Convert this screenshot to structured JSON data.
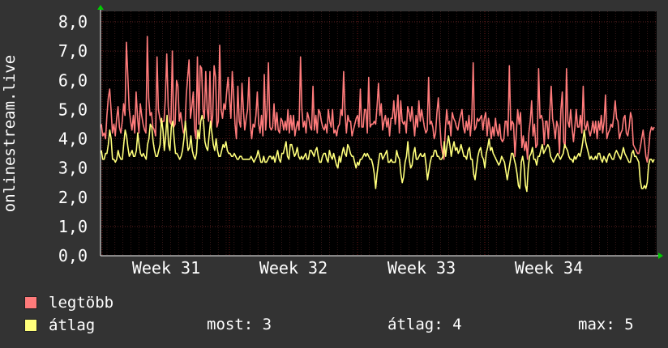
{
  "colors": {
    "background": "#333333",
    "plot_background": "#000000",
    "grid": "#5a2a2a",
    "axis_text": "#ffffff",
    "series_max": "#ff7b7b",
    "series_avg": "#ffff7b",
    "arrow": "#00cc00"
  },
  "chart_data": {
    "type": "line",
    "ylabel": "onlinestream.live",
    "ylim": [
      0,
      8
    ],
    "yticks": [
      "0,0",
      "1,0",
      "2,0",
      "3,0",
      "4,0",
      "5,0",
      "6,0",
      "7,0",
      "8,0"
    ],
    "xticks": [
      "Week 31",
      "Week 32",
      "Week 33",
      "Week 34"
    ],
    "grid": true,
    "series": [
      {
        "name": "legtöbb",
        "color": "#ff7b7b",
        "values": [
          4.5,
          4.1,
          4.2,
          4.0,
          4.8,
          5.4,
          5.7,
          5.0,
          4.2,
          4.5,
          4.1,
          4.7,
          5.1,
          4.4,
          4.2,
          4.6,
          5.2,
          4.8,
          7.3,
          6.2,
          5.0,
          4.6,
          4.3,
          4.8,
          4.2,
          5.6,
          4.7,
          4.2,
          5.2,
          4.8,
          4.5,
          4.3,
          4.2,
          7.5,
          5.4,
          4.8,
          4.9,
          4.4,
          4.3,
          4.1,
          6.8,
          5.0,
          4.7,
          4.5,
          4.6,
          4.6,
          5.4,
          6.9,
          5.1,
          4.6,
          4.5,
          7.0,
          4.4,
          4.5,
          6.0,
          5.8,
          4.6,
          4.9,
          4.5,
          4.2,
          4.3,
          5.5,
          6.1,
          6.7,
          4.7,
          5.1,
          5.6,
          4.3,
          4.0,
          6.8,
          4.5,
          6.5,
          6.4,
          5.0,
          4.7,
          6.3,
          5.0,
          4.6,
          6.3,
          4.4,
          4.8,
          6.5,
          6.1,
          4.4,
          4.6,
          7.2,
          5.0,
          4.7,
          5.2,
          5.0,
          5.6,
          6.1,
          5.4,
          4.7,
          6.3,
          5.5,
          4.5,
          4.0,
          5.8,
          4.6,
          4.4,
          5.9,
          5.0,
          4.3,
          4.7,
          5.0,
          6.1,
          4.5,
          4.0,
          4.5,
          4.4,
          4.8,
          5.6,
          4.5,
          4.2,
          4.8,
          4.1,
          6.2,
          4.3,
          5.0,
          6.6,
          4.4,
          4.3,
          4.4,
          5.2,
          4.3,
          4.9,
          4.3,
          4.2,
          4.7,
          4.6,
          4.3,
          4.6,
          4.3,
          5.0,
          4.2,
          4.8,
          4.3,
          4.8,
          4.1,
          4.4,
          4.6,
          4.3,
          6.8,
          5.0,
          4.4,
          4.6,
          4.2,
          4.9,
          4.7,
          4.4,
          4.3,
          5.8,
          4.3,
          4.8,
          4.2,
          5.0,
          4.9,
          4.6,
          4.4,
          4.3,
          4.5,
          4.2,
          5.0,
          4.6,
          4.4,
          5.0,
          4.2,
          4.3,
          4.1,
          4.4,
          4.5,
          5.0,
          4.8,
          6.3,
          4.9,
          4.2,
          4.8,
          4.6,
          4.6,
          4.1,
          4.3,
          4.5,
          4.7,
          4.8,
          4.4,
          5.7,
          4.4,
          4.4,
          5.0,
          5.0,
          4.2,
          6.1,
          4.4,
          4.5,
          4.5,
          4.6,
          4.5,
          5.1,
          5.9,
          4.8,
          5.2,
          4.3,
          4.6,
          4.8,
          4.4,
          4.7,
          4.1,
          4.7,
          4.7,
          5.3,
          4.5,
          4.9,
          5.5,
          4.2,
          5.3,
          4.6,
          4.5,
          4.6,
          4.2,
          5.1,
          4.9,
          4.6,
          5.1,
          4.6,
          4.1,
          4.8,
          4.4,
          5.3,
          4.6,
          5.0,
          4.7,
          4.4,
          4.2,
          4.3,
          6.1,
          4.5,
          4.6,
          4.4,
          4.0,
          4.2,
          4.9,
          5.4,
          4.6,
          3.8,
          3.5,
          3.3,
          4.3,
          5.0,
          4.5,
          4.6,
          4.1,
          4.9,
          4.7,
          4.6,
          4.4,
          4.3,
          4.6,
          4.8,
          5.0,
          4.4,
          4.2,
          4.6,
          4.3,
          4.8,
          4.1,
          4.7,
          6.6,
          4.3,
          4.4,
          4.7,
          4.6,
          4.7,
          4.8,
          4.3,
          4.7,
          4.9,
          4.1,
          4.7,
          4.4,
          4.0,
          4.4,
          4.1,
          4.7,
          4.3,
          4.1,
          4.5,
          4.0,
          3.9,
          4.0,
          4.6,
          4.6,
          4.1,
          6.5,
          4.3,
          4.6,
          4.5,
          3.4,
          4.2,
          5.0,
          4.5,
          4.9,
          3.7,
          4.1,
          3.6,
          3.9,
          3.3,
          4.2,
          4.6,
          5.3,
          4.1,
          4.5,
          3.7,
          3.8,
          6.4,
          4.7,
          4.8,
          4.6,
          3.8,
          4.6,
          4.6,
          4.0,
          4.9,
          5.8,
          4.7,
          4.4,
          4.0,
          4.6,
          4.4,
          3.5,
          5.0,
          5.6,
          3.9,
          3.7,
          6.4,
          4.6,
          4.4,
          5.0,
          4.4,
          3.9,
          4.4,
          5.0,
          4.4,
          4.4,
          4.8,
          4.2,
          5.8,
          4.5,
          4.3,
          4.6,
          4.3,
          4.1,
          4.3,
          4.6,
          4.2,
          4.6,
          4.0,
          4.6,
          4.3,
          4.8,
          4.2,
          4.6,
          5.5,
          4.0,
          4.2,
          4.3,
          4.5,
          4.4,
          4.8,
          5.3,
          4.7,
          4.6,
          4.0,
          4.2,
          4.3,
          4.7,
          4.8,
          4.2,
          4.1,
          4.4,
          4.9,
          4.7,
          3.8,
          3.7,
          3.6,
          3.5,
          3.5,
          3.7,
          4.0,
          4.3,
          3.9,
          3.4,
          3.2,
          3.6,
          4.2,
          4.4,
          4.3,
          4.4
        ],
        "label": "legtöbb"
      },
      {
        "name": "átlag",
        "color": "#ffff7b",
        "values": [
          3.6,
          3.3,
          3.3,
          3.5,
          3.5,
          3.8,
          4.3,
          4.0,
          3.3,
          3.3,
          3.2,
          3.3,
          3.6,
          3.4,
          3.3,
          3.3,
          3.8,
          4.3,
          4.1,
          3.7,
          3.4,
          3.5,
          3.6,
          3.4,
          3.4,
          3.6,
          4.2,
          3.8,
          3.5,
          3.4,
          3.5,
          3.4,
          3.3,
          3.8,
          4.0,
          4.5,
          4.4,
          3.9,
          3.6,
          3.4,
          3.4,
          3.6,
          3.8,
          4.7,
          4.3,
          3.6,
          4.1,
          4.8,
          3.8,
          3.6,
          4.4,
          4.6,
          4.0,
          3.5,
          3.5,
          3.4,
          3.3,
          3.4,
          3.6,
          4.0,
          4.6,
          4.1,
          3.6,
          3.7,
          4.1,
          3.6,
          3.4,
          3.3,
          3.5,
          4.3,
          4.0,
          4.6,
          4.8,
          4.6,
          3.9,
          3.7,
          3.6,
          4.1,
          4.6,
          4.2,
          3.8,
          3.6,
          4.0,
          3.6,
          3.4,
          3.4,
          3.6,
          3.8,
          3.7,
          3.9,
          3.6,
          3.5,
          3.5,
          3.4,
          3.4,
          3.5,
          3.4,
          3.3,
          3.3,
          3.4,
          3.4,
          3.3,
          3.3,
          3.3,
          3.3,
          3.3,
          3.3,
          3.4,
          3.3,
          3.2,
          3.3,
          3.4,
          3.6,
          3.4,
          3.2,
          3.2,
          3.4,
          3.2,
          3.2,
          3.3,
          3.4,
          3.4,
          3.3,
          3.4,
          3.2,
          3.4,
          3.6,
          3.3,
          3.2,
          3.5,
          3.5,
          3.7,
          3.9,
          3.4,
          3.3,
          3.8,
          3.8,
          3.6,
          3.4,
          3.5,
          3.7,
          3.4,
          3.3,
          3.4,
          3.3,
          3.4,
          3.5,
          3.3,
          3.3,
          3.6,
          3.6,
          3.5,
          3.4,
          3.6,
          3.7,
          3.4,
          3.2,
          3.2,
          3.4,
          3.5,
          3.5,
          3.3,
          3.2,
          3.6,
          3.4,
          3.3,
          3.5,
          3.3,
          3.1,
          3.0,
          3.4,
          3.2,
          3.5,
          3.7,
          3.5,
          3.4,
          3.8,
          3.7,
          3.5,
          3.4,
          3.4,
          3.2,
          3.0,
          3.2,
          3.1,
          3.3,
          3.3,
          3.4,
          3.5,
          3.4,
          3.5,
          3.4,
          3.3,
          3.3,
          3.1,
          2.8,
          2.3,
          2.8,
          3.2,
          3.5,
          3.5,
          3.3,
          3.4,
          3.5,
          3.6,
          3.2,
          3.2,
          3.3,
          3.2,
          3.2,
          3.2,
          3.6,
          3.4,
          3.3,
          2.8,
          2.5,
          2.7,
          3.2,
          3.4,
          3.9,
          3.3,
          3.0,
          3.1,
          3.5,
          3.7,
          3.3,
          3.3,
          3.4,
          3.5,
          3.4,
          3.4,
          3.5,
          3.1,
          2.6,
          2.9,
          3.2,
          3.4,
          3.4,
          3.6,
          3.6,
          3.4,
          3.4,
          3.3,
          3.3,
          3.4,
          3.9,
          3.4,
          3.8,
          4.1,
          3.8,
          3.4,
          3.7,
          3.9,
          3.6,
          3.7,
          3.5,
          3.6,
          3.8,
          3.6,
          3.4,
          3.4,
          3.3,
          3.6,
          3.7,
          3.3,
          3.3,
          2.8,
          2.6,
          3.0,
          3.4,
          3.6,
          3.7,
          3.4,
          3.3,
          3.0,
          3.5,
          3.7,
          4.0,
          3.6,
          3.7,
          3.5,
          3.4,
          3.3,
          3.2,
          3.1,
          3.2,
          3.4,
          3.3,
          3.2,
          2.9,
          2.6,
          2.9,
          3.2,
          3.5,
          3.5,
          3.3,
          3.1,
          2.8,
          2.4,
          2.3,
          3.2,
          3.4,
          3.1,
          2.4,
          2.2,
          3.0,
          3.4,
          3.5,
          3.7,
          3.3,
          3.3,
          3.1,
          3.4,
          3.4,
          3.6,
          3.8,
          3.5,
          3.6,
          3.7,
          3.8,
          3.7,
          3.4,
          3.3,
          3.2,
          3.3,
          3.4,
          3.5,
          3.4,
          3.3,
          3.4,
          3.5,
          3.8,
          3.7,
          3.6,
          3.4,
          3.3,
          3.3,
          3.2,
          3.4,
          3.3,
          3.4,
          3.5,
          3.4,
          3.6,
          3.9,
          4.3,
          3.9,
          3.7,
          3.5,
          3.3,
          3.4,
          3.3,
          3.3,
          3.4,
          3.3,
          3.5,
          3.5,
          3.3,
          3.2,
          3.4,
          3.3,
          3.2,
          3.4,
          3.5,
          3.4,
          3.3,
          3.3,
          3.5,
          3.6,
          3.5,
          3.4,
          3.3,
          3.5,
          3.7,
          3.5,
          3.4,
          3.3,
          3.2,
          3.2,
          3.5,
          3.6,
          3.4,
          3.4,
          3.3,
          3.2,
          2.6,
          2.3,
          2.3,
          2.4,
          2.3,
          2.5,
          3.1,
          3.3,
          3.3,
          3.2,
          3.3
        ],
        "label": "átlag"
      }
    ]
  },
  "legend": {
    "items": [
      {
        "label": "legtöbb",
        "color": "#ff7b7b"
      },
      {
        "label": "átlag",
        "color": "#ffff7b"
      }
    ],
    "stats": {
      "most": "most: 3",
      "atlag": "átlag: 4",
      "max": "max: 5"
    }
  }
}
